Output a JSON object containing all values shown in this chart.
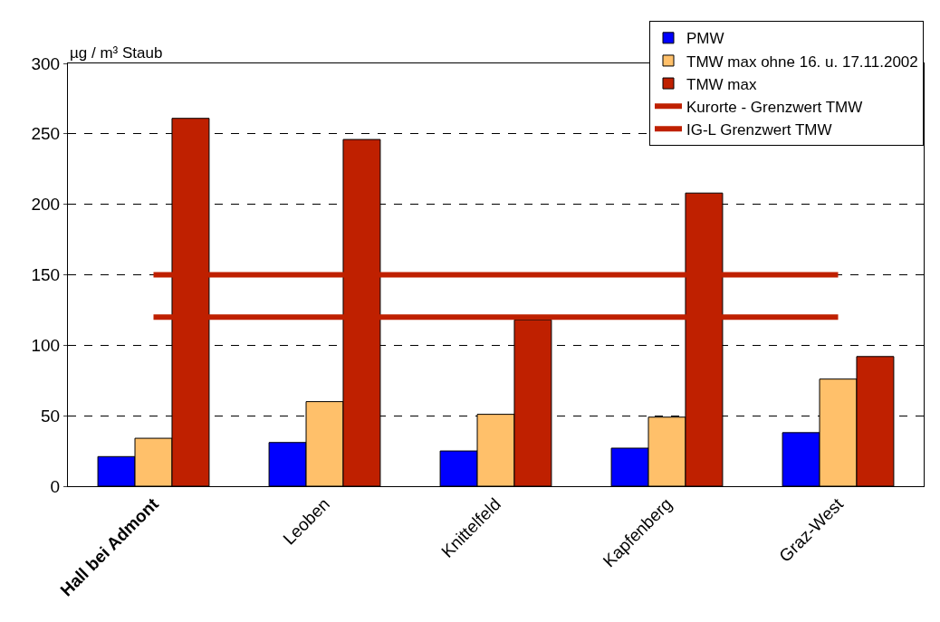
{
  "chart_data": {
    "type": "bar",
    "ylabel": "µg / m³ Staub",
    "categories": [
      "Hall bei Admont",
      "Leoben",
      "Knittelfeld",
      "Kapfenberg",
      "Graz-West"
    ],
    "series": [
      {
        "name": "PMW",
        "color": "#0000ff",
        "values": [
          21,
          31,
          25,
          27,
          38
        ]
      },
      {
        "name": "TMW max ohne 16. u. 17.11.2002",
        "color": "#ffc06a",
        "values": [
          34,
          60,
          51,
          49,
          76
        ]
      },
      {
        "name": "TMW max",
        "color": "#bf2000",
        "values": [
          261,
          246,
          118,
          208,
          92
        ]
      },
      {
        "name": "Kurorte - Grenzwert TMW",
        "type": "line",
        "color": "#bf2000",
        "values": [
          120,
          120,
          120,
          120,
          120
        ]
      },
      {
        "name": "IG-L Grenzwert TMW",
        "type": "line",
        "color": "#bf2000",
        "values": [
          150,
          150,
          150,
          150,
          150
        ]
      }
    ],
    "ylim": [
      0,
      300
    ],
    "yticks": [
      0,
      50,
      100,
      150,
      200,
      250,
      300
    ],
    "grid": "y",
    "legend": "top right",
    "marker": "none",
    "line_style": "solid"
  }
}
